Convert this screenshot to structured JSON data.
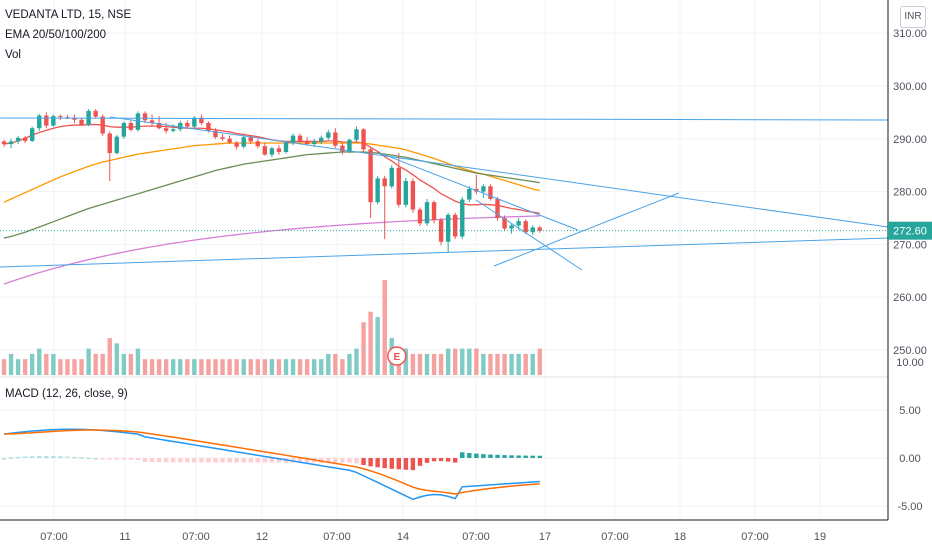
{
  "header": {
    "title": "VEDANTA LTD, 15, NSE",
    "ema_legend": "EMA 20/50/100/200",
    "vol_legend": "Vol",
    "currency": "INR"
  },
  "colors": {
    "up": "#26a69a",
    "down": "#ef5350",
    "vol_up": "#80cbc4",
    "vol_down": "#f5a3a1",
    "ema20": "#f05350",
    "ema50": "#ff9800",
    "ema100": "#6b8e55",
    "ema200": "#d67fd6",
    "trendline": "#4aa3e8",
    "macd_line": "#2196f3",
    "signal_line": "#ff6d00",
    "price_tag": "#26a69a"
  },
  "macd_pane": {
    "label": "MACD (12, 26, close, 9)",
    "y_ticks": [
      "10.00",
      "5.00",
      "0.00",
      "-5.00"
    ]
  },
  "chart_data": {
    "type": "candlestick",
    "symbol": "VEDANTA LTD",
    "interval": "15",
    "exchange": "NSE",
    "y_ticks": [
      250,
      260,
      270,
      280,
      290,
      300,
      310
    ],
    "ylim": [
      248,
      316
    ],
    "last_price_label": "272.60",
    "x_tick_labels": [
      "07:00",
      "11",
      "07:00",
      "12",
      "07:00",
      "14",
      "07:00",
      "17",
      "07:00",
      "18",
      "07:00",
      "19"
    ],
    "candles": [
      [
        289.5,
        289.8,
        288.5,
        289.0
      ],
      [
        289.0,
        290.0,
        288.2,
        289.5
      ],
      [
        289.5,
        290.5,
        289.0,
        290.2
      ],
      [
        290.2,
        290.5,
        289.2,
        289.6
      ],
      [
        289.6,
        292.3,
        289.4,
        292.0
      ],
      [
        292.0,
        294.7,
        291.5,
        294.4
      ],
      [
        294.4,
        295.0,
        292.0,
        292.5
      ],
      [
        292.5,
        294.6,
        292.3,
        294.3
      ],
      [
        294.3,
        294.6,
        293.5,
        294.1
      ],
      [
        294.1,
        294.5,
        293.7,
        294.0
      ],
      [
        294.0,
        294.6,
        293.0,
        293.6
      ],
      [
        293.6,
        293.9,
        292.4,
        292.6
      ],
      [
        292.6,
        295.6,
        292.4,
        295.3
      ],
      [
        295.3,
        295.6,
        293.8,
        294.2
      ],
      [
        294.2,
        294.6,
        290.5,
        291.0
      ],
      [
        291.0,
        291.4,
        282.0,
        287.3
      ],
      [
        287.3,
        290.7,
        287.0,
        290.4
      ],
      [
        290.4,
        293.3,
        290.0,
        293.0
      ],
      [
        293.0,
        293.4,
        291.4,
        291.7
      ],
      [
        291.7,
        295.2,
        291.4,
        294.8
      ],
      [
        294.8,
        295.2,
        293.0,
        293.5
      ],
      [
        293.5,
        294.6,
        292.4,
        293.0
      ],
      [
        293.0,
        294.3,
        291.8,
        292.0
      ],
      [
        292.0,
        293.0,
        291.0,
        291.5
      ],
      [
        291.5,
        292.7,
        291.2,
        291.8
      ],
      [
        291.8,
        293.4,
        291.4,
        293.0
      ],
      [
        293.0,
        293.5,
        292.0,
        292.3
      ],
      [
        292.3,
        294.3,
        292.0,
        294.0
      ],
      [
        294.0,
        294.6,
        292.6,
        293.0
      ],
      [
        293.0,
        293.3,
        291.2,
        291.5
      ],
      [
        291.5,
        292.0,
        290.0,
        290.3
      ],
      [
        290.3,
        290.9,
        289.6,
        290.0
      ],
      [
        290.0,
        290.6,
        289.0,
        289.3
      ],
      [
        289.3,
        289.6,
        288.0,
        288.5
      ],
      [
        288.5,
        290.6,
        288.2,
        290.3
      ],
      [
        290.3,
        290.6,
        289.0,
        289.5
      ],
      [
        289.5,
        290.0,
        288.2,
        288.6
      ],
      [
        288.6,
        289.3,
        286.8,
        287.0
      ],
      [
        287.0,
        288.5,
        286.5,
        288.2
      ],
      [
        288.2,
        288.8,
        287.0,
        287.5
      ],
      [
        287.5,
        289.6,
        287.2,
        289.3
      ],
      [
        289.3,
        291.0,
        288.8,
        290.6
      ],
      [
        290.6,
        291.0,
        289.2,
        289.6
      ],
      [
        289.6,
        290.3,
        288.7,
        289.0
      ],
      [
        289.0,
        290.0,
        288.4,
        289.5
      ],
      [
        289.5,
        290.6,
        289.0,
        290.2
      ],
      [
        290.2,
        291.7,
        289.8,
        291.2
      ],
      [
        291.2,
        292.0,
        288.3,
        288.7
      ],
      [
        288.7,
        289.2,
        287.0,
        287.6
      ],
      [
        287.6,
        290.0,
        287.3,
        289.8
      ],
      [
        289.8,
        292.3,
        289.4,
        291.8
      ],
      [
        291.8,
        292.0,
        287.5,
        288.0
      ],
      [
        288.0,
        288.3,
        275.0,
        278.0
      ],
      [
        278.0,
        283.0,
        277.6,
        282.5
      ],
      [
        282.5,
        283.0,
        271.0,
        281.0
      ],
      [
        281.0,
        285.0,
        280.6,
        284.5
      ],
      [
        284.5,
        287.3,
        277.0,
        277.5
      ],
      [
        277.5,
        282.6,
        277.0,
        282.0
      ],
      [
        282.0,
        282.5,
        276.0,
        276.6
      ],
      [
        276.6,
        277.0,
        273.5,
        274.0
      ],
      [
        274.0,
        278.6,
        273.5,
        278.0
      ],
      [
        278.0,
        278.3,
        274.0,
        274.6
      ],
      [
        274.6,
        275.0,
        269.8,
        270.5
      ],
      [
        270.5,
        276.0,
        268.5,
        275.6
      ],
      [
        275.6,
        276.0,
        271.0,
        271.5
      ],
      [
        271.5,
        279.0,
        271.0,
        278.5
      ],
      [
        278.5,
        281.0,
        278.0,
        280.5
      ],
      [
        280.5,
        283.2,
        279.5,
        280.0
      ],
      [
        280.0,
        281.4,
        278.8,
        281.0
      ],
      [
        281.0,
        281.4,
        278.3,
        278.6
      ],
      [
        278.6,
        279.0,
        274.5,
        275.0
      ],
      [
        275.0,
        275.5,
        272.6,
        273.0
      ],
      [
        273.0,
        274.0,
        272.0,
        273.6
      ],
      [
        273.6,
        275.0,
        272.8,
        274.4
      ],
      [
        274.4,
        274.7,
        272.0,
        272.3
      ],
      [
        272.3,
        273.6,
        271.8,
        273.2
      ],
      [
        273.2,
        273.5,
        272.2,
        272.6
      ]
    ],
    "volume": [
      3,
      4,
      3,
      3,
      4,
      5,
      4,
      4,
      3,
      3,
      3,
      3,
      5,
      4,
      4,
      7,
      6,
      4,
      4,
      5,
      3,
      3,
      3,
      3,
      3,
      3,
      3,
      3,
      3,
      3,
      3,
      3,
      3,
      3,
      3,
      3,
      3,
      3,
      3,
      3,
      3,
      3,
      3,
      3,
      3,
      3,
      4,
      4,
      3,
      4,
      5,
      10,
      12,
      11,
      18,
      7,
      5,
      5,
      4,
      4,
      4,
      4,
      4,
      5,
      5,
      5,
      5,
      5,
      4,
      4,
      4,
      4,
      4,
      4,
      4,
      4,
      5
    ],
    "ema20": [
      289,
      289.2,
      289.6,
      290.1,
      290.7,
      291.2,
      291.6,
      292,
      292.3,
      292.5,
      292.6,
      292.6,
      292.7,
      292.7,
      292.6,
      292.3,
      292.2,
      292.2,
      292.2,
      292.3,
      292.4,
      292.4,
      292.4,
      292.3,
      292.2,
      292.1,
      292,
      292,
      292,
      291.9,
      291.7,
      291.5,
      291.3,
      291,
      290.8,
      290.6,
      290.4,
      290.1,
      289.8,
      289.6,
      289.5,
      289.5,
      289.5,
      289.5,
      289.5,
      289.5,
      289.6,
      289.6,
      289.4,
      289.3,
      289.4,
      289.2,
      288.4,
      287.6,
      286.6,
      285.8,
      284.8,
      284.1,
      283.2,
      282.2,
      281.4,
      280.6,
      279.6,
      278.9,
      278.2,
      277.7,
      277.5,
      277.5,
      277.6,
      277.5,
      277.4,
      277.1,
      276.8,
      276.6,
      276.3,
      276.1,
      275.9
    ],
    "ema50": [
      278,
      278.6,
      279.2,
      279.8,
      280.4,
      281,
      281.6,
      282.2,
      282.8,
      283.3,
      283.8,
      284.3,
      284.8,
      285.2,
      285.6,
      285.9,
      286.2,
      286.5,
      286.8,
      287.1,
      287.3,
      287.5,
      287.7,
      287.9,
      288.1,
      288.3,
      288.5,
      288.7,
      288.8,
      288.9,
      289,
      289.1,
      289.2,
      289.2,
      289.2,
      289.2,
      289.2,
      289.2,
      289.2,
      289.2,
      289.2,
      289.2,
      289.2,
      289.2,
      289.2,
      289.2,
      289.2,
      289.2,
      289.2,
      289.2,
      289.2,
      289.2,
      289,
      288.8,
      288.6,
      288.4,
      288.2,
      287.9,
      287.5,
      287.1,
      286.7,
      286.3,
      285.8,
      285.3,
      284.8,
      284.4,
      284,
      283.6,
      283.3,
      282.9,
      282.5,
      282.1,
      281.7,
      281.3,
      280.9,
      280.5,
      280.2
    ],
    "ema100": [
      271.2,
      271.5,
      271.9,
      272.3,
      272.8,
      273.3,
      273.8,
      274.3,
      274.8,
      275.3,
      275.8,
      276.3,
      276.8,
      277.2,
      277.6,
      278,
      278.4,
      278.8,
      279.2,
      279.6,
      280,
      280.4,
      280.8,
      281.2,
      281.6,
      282,
      282.4,
      282.8,
      283.2,
      283.6,
      284,
      284.3,
      284.6,
      284.9,
      285.2,
      285.4,
      285.6,
      285.8,
      286,
      286.2,
      286.4,
      286.6,
      286.8,
      287,
      287.1,
      287.2,
      287.3,
      287.4,
      287.5,
      287.5,
      287.5,
      287.5,
      287.4,
      287.3,
      287.1,
      286.9,
      286.7,
      286.5,
      286.2,
      285.9,
      285.6,
      285.3,
      285,
      284.7,
      284.4,
      284.1,
      283.8,
      283.5,
      283.3,
      283.1,
      282.9,
      282.7,
      282.5,
      282.3,
      282.1,
      281.9,
      281.7
    ]
  }
}
